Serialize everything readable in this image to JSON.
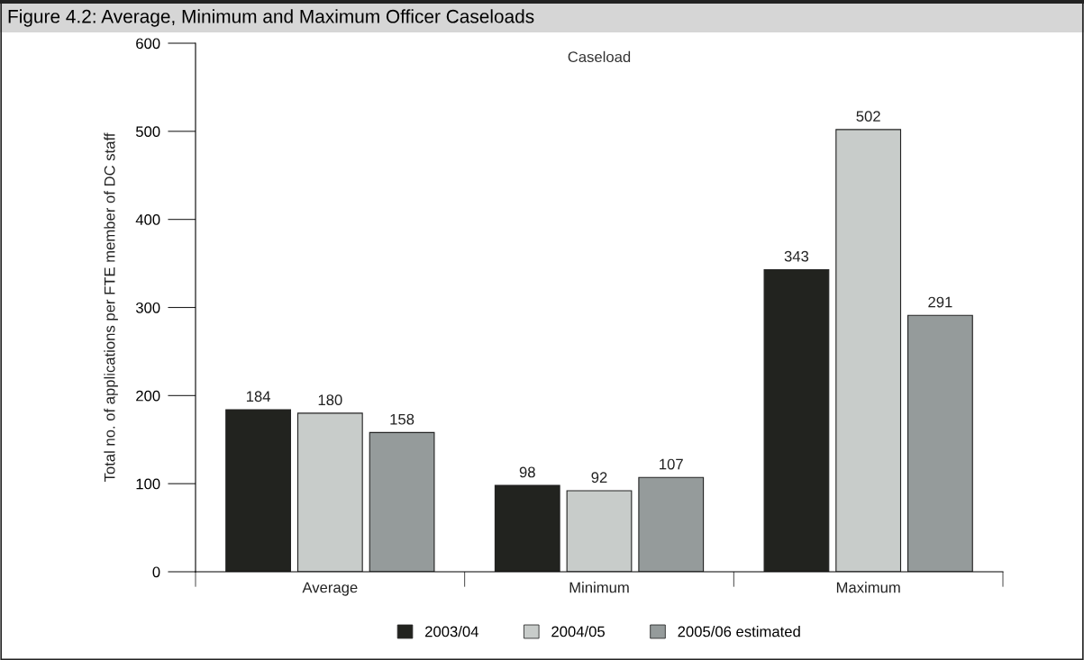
{
  "chart_data": {
    "type": "bar",
    "title": "Figure 4.2: Average, Minimum and Maximum Officer Caseloads",
    "subtitle": "Caseload",
    "ylabel": "Total no. of applications per FTE member of DC staff",
    "categories": [
      "Average",
      "Minimum",
      "Maximum"
    ],
    "series": [
      {
        "name": "2003/04",
        "color": "#22231f",
        "values": [
          184,
          98,
          343
        ]
      },
      {
        "name": "2004/05",
        "color": "#c8ccca",
        "values": [
          180,
          92,
          502
        ]
      },
      {
        "name": "2005/06 estimated",
        "color": "#959b9b",
        "values": [
          158,
          107,
          291
        ]
      }
    ],
    "ylim": [
      0,
      600
    ],
    "yticks": [
      0,
      100,
      200,
      300,
      400,
      500,
      600
    ],
    "data_labels": true,
    "grid": false,
    "legend": "bottom"
  }
}
